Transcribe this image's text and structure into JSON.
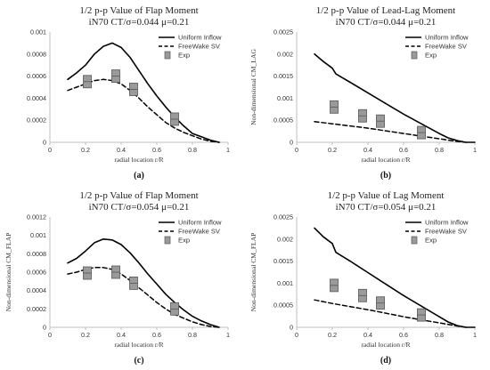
{
  "chart_data": [
    {
      "type": "line",
      "panel_label": "(a)",
      "title_lines": [
        "1/2 p-p Value of Flap Moment",
        "iN70 CT/σ=0.044 μ=0.21"
      ],
      "xlabel": "radial location r/R",
      "ylabel": "",
      "xlim": [
        0,
        1
      ],
      "ylim": [
        0,
        0.001
      ],
      "x_ticks": [
        "0",
        "0.2",
        "0.4",
        "0.6",
        "0.8",
        "1"
      ],
      "y_ticks": [
        "0",
        "0.0002",
        "0.0004",
        "0.0006",
        "0.0008",
        "0.001"
      ],
      "legend_position": "upper-right",
      "series": [
        {
          "name": "Uniform Inflow",
          "style": "solid",
          "x": [
            0.1,
            0.15,
            0.2,
            0.25,
            0.3,
            0.35,
            0.4,
            0.45,
            0.5,
            0.55,
            0.6,
            0.65,
            0.7,
            0.75,
            0.8,
            0.85,
            0.9,
            0.95
          ],
          "y": [
            0.00057,
            0.00063,
            0.0007,
            0.0008,
            0.00087,
            0.0009,
            0.00086,
            0.00077,
            0.00065,
            0.00053,
            0.00042,
            0.00032,
            0.00023,
            0.00015,
            8e-05,
            5e-05,
            2e-05,
            0.0
          ]
        },
        {
          "name": "FreeWake SV",
          "style": "dashed",
          "x": [
            0.1,
            0.15,
            0.2,
            0.25,
            0.3,
            0.35,
            0.4,
            0.45,
            0.5,
            0.55,
            0.6,
            0.65,
            0.7,
            0.75,
            0.8,
            0.85,
            0.9,
            0.95
          ],
          "y": [
            0.00047,
            0.0005,
            0.00053,
            0.00056,
            0.00057,
            0.00056,
            0.00053,
            0.00047,
            0.0004,
            0.00032,
            0.00025,
            0.00018,
            0.00013,
            9e-05,
            6e-05,
            3e-05,
            1e-05,
            0.0
          ]
        },
        {
          "name": "Exp",
          "style": "marker",
          "x": [
            0.21,
            0.37,
            0.47,
            0.7
          ],
          "y": [
            0.00055,
            0.0006,
            0.00048,
            0.00021
          ]
        }
      ]
    },
    {
      "type": "line",
      "panel_label": "(b)",
      "title_lines": [
        "1/2 p-p Value of Lead-Lag Moment",
        "iN70 CT/σ=0.044 μ=0.21"
      ],
      "xlabel": "radial location r/R",
      "ylabel": "Non-dimensional CM_LAG",
      "xlim": [
        0,
        1
      ],
      "ylim": [
        0,
        0.0025
      ],
      "x_ticks": [
        "0",
        "0.2",
        "0.4",
        "0.6",
        "0.8",
        "1"
      ],
      "y_ticks": [
        "0",
        "0.0005",
        "0.001",
        "0.0015",
        "0.002",
        "0.0025"
      ],
      "legend_position": "upper-right",
      "series": [
        {
          "name": "Uniform Inflow",
          "style": "solid",
          "x": [
            0.1,
            0.15,
            0.2,
            0.22,
            0.3,
            0.4,
            0.5,
            0.6,
            0.7,
            0.8,
            0.85,
            0.9,
            0.95,
            1.0
          ],
          "y": [
            0.002,
            0.00183,
            0.00168,
            0.00155,
            0.00136,
            0.00112,
            0.00088,
            0.00064,
            0.00042,
            0.0002,
            0.0001,
            4e-05,
            0.0,
            0.0
          ]
        },
        {
          "name": "FreeWake SV",
          "style": "dashed",
          "x": [
            0.1,
            0.2,
            0.3,
            0.4,
            0.5,
            0.6,
            0.7,
            0.8,
            0.9,
            0.95
          ],
          "y": [
            0.00047,
            0.00042,
            0.00037,
            0.00032,
            0.00026,
            0.0002,
            0.00014,
            8e-05,
            2e-05,
            0.0
          ]
        },
        {
          "name": "Exp",
          "style": "marker",
          "x": [
            0.21,
            0.37,
            0.47,
            0.7
          ],
          "y": [
            0.0008,
            0.0006,
            0.00048,
            0.00022
          ]
        }
      ]
    },
    {
      "type": "line",
      "panel_label": "(c)",
      "title_lines": [
        "1/2 p-p Value of Flap Moment",
        "iN70 CT/σ=0.054 μ=0.21"
      ],
      "xlabel": "radial location r/R",
      "ylabel": "Non-dimensional CM_FLAP",
      "xlim": [
        0,
        1
      ],
      "ylim": [
        0,
        0.0012
      ],
      "x_ticks": [
        "0",
        "0.2",
        "0.4",
        "0.6",
        "0.8",
        "1"
      ],
      "y_ticks": [
        "0",
        "0.0002",
        "0.0004",
        "0.0006",
        "0.0008",
        "0.001",
        "0.0012"
      ],
      "legend_position": "upper-right",
      "series": [
        {
          "name": "Uniform Inflow",
          "style": "solid",
          "x": [
            0.1,
            0.15,
            0.2,
            0.25,
            0.3,
            0.35,
            0.4,
            0.45,
            0.5,
            0.55,
            0.6,
            0.65,
            0.7,
            0.75,
            0.8,
            0.85,
            0.9,
            0.95
          ],
          "y": [
            0.0007,
            0.00075,
            0.00083,
            0.00092,
            0.00096,
            0.00095,
            0.0009,
            0.00081,
            0.0007,
            0.00058,
            0.00047,
            0.00036,
            0.00027,
            0.00019,
            0.00012,
            7e-05,
            3e-05,
            0.0
          ]
        },
        {
          "name": "FreeWake SV",
          "style": "dashed",
          "x": [
            0.1,
            0.15,
            0.2,
            0.25,
            0.3,
            0.35,
            0.4,
            0.45,
            0.5,
            0.55,
            0.6,
            0.65,
            0.7,
            0.75,
            0.8,
            0.85,
            0.9,
            0.95
          ],
          "y": [
            0.00058,
            0.0006,
            0.00063,
            0.00065,
            0.00065,
            0.00063,
            0.00058,
            0.00051,
            0.00043,
            0.00035,
            0.00027,
            0.0002,
            0.00014,
            0.0001,
            6e-05,
            3e-05,
            1e-05,
            0.0
          ]
        },
        {
          "name": "Exp",
          "style": "marker",
          "x": [
            0.21,
            0.37,
            0.47,
            0.7
          ],
          "y": [
            0.00059,
            0.0006,
            0.00048,
            0.0002
          ]
        }
      ]
    },
    {
      "type": "line",
      "panel_label": "(d)",
      "title_lines": [
        "1/2 p-p Value of Lag Moment",
        "iN70 CT/σ=0.054 μ=0.21"
      ],
      "xlabel": "radial location r/R",
      "ylabel": "Non-dimensional CM_FLAP",
      "xlim": [
        0,
        1
      ],
      "ylim": [
        0,
        0.0025
      ],
      "x_ticks": [
        "0",
        "0.2",
        "0.4",
        "0.6",
        "0.8",
        "1"
      ],
      "y_ticks": [
        "0",
        "0.0005",
        "0.001",
        "0.0015",
        "0.002",
        "0.0025"
      ],
      "legend_position": "upper-right",
      "series": [
        {
          "name": "Uniform Inflow",
          "style": "solid",
          "x": [
            0.1,
            0.15,
            0.2,
            0.22,
            0.3,
            0.4,
            0.5,
            0.6,
            0.7,
            0.8,
            0.85,
            0.9,
            0.95,
            1.0
          ],
          "y": [
            0.00225,
            0.00205,
            0.0019,
            0.0017,
            0.0015,
            0.00124,
            0.00098,
            0.00072,
            0.00048,
            0.00024,
            0.00012,
            4e-05,
            0.0,
            0.0
          ]
        },
        {
          "name": "FreeWake SV",
          "style": "dashed",
          "x": [
            0.1,
            0.2,
            0.3,
            0.4,
            0.5,
            0.6,
            0.7,
            0.8,
            0.9,
            0.95
          ],
          "y": [
            0.00062,
            0.00054,
            0.00047,
            0.0004,
            0.00032,
            0.00024,
            0.00017,
            0.0001,
            3e-05,
            0.0
          ]
        },
        {
          "name": "Exp",
          "style": "marker",
          "x": [
            0.21,
            0.37,
            0.47,
            0.7
          ],
          "y": [
            0.00095,
            0.00072,
            0.00055,
            0.00028
          ]
        }
      ]
    }
  ]
}
